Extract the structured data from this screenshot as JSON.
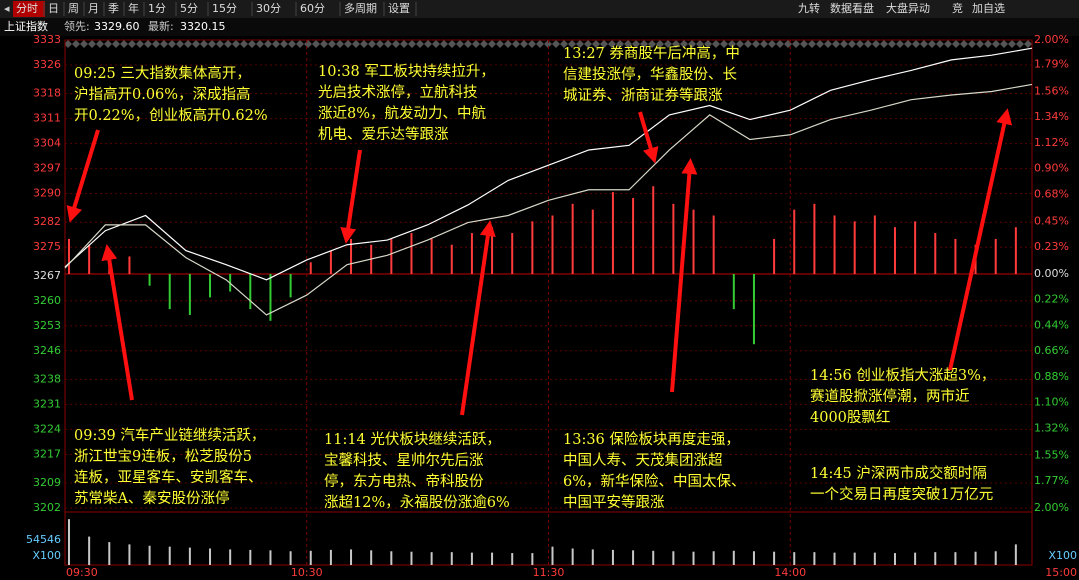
{
  "toolbar": {
    "left": [
      "分时",
      "日",
      "周",
      "月",
      "季",
      "年",
      "1分",
      "5分",
      "15分",
      "30分",
      "60分",
      "多周期",
      "设置"
    ],
    "right": [
      "九转",
      "数据看盘",
      "大盘异动",
      "竞",
      "加自选"
    ]
  },
  "header": {
    "name": "上证指数",
    "lead_label": "领先:",
    "lead_value": "3329.60",
    "last_label": "最新:",
    "last_value": "3320.15"
  },
  "annotations": [
    {
      "lines": [
        "09:25 三大指数集体高开，",
        "沪指高开0.06%，深成指高",
        "开0.22%，创业板高开0.62%"
      ]
    },
    {
      "lines": [
        "10:38 军工板块持续拉升，",
        "光启技术涨停，立航科技",
        "涨近8%，航发动力、中航",
        "机电、爱乐达等跟涨"
      ]
    },
    {
      "lines": [
        "13:27 券商股午后冲高，中",
        "信建投涨停，华鑫股份、长",
        "城证券、浙商证券等跟涨"
      ]
    },
    {
      "lines": [
        "09:39 汽车产业链继续活跃，",
        "浙江世宝9连板，松芝股份5",
        "连板，亚星客车、安凯客车、",
        "苏常柴A、秦安股份涨停"
      ]
    },
    {
      "lines": [
        "11:14 光伏板块继续活跃，",
        "宝馨科技、星帅尔先后涨",
        "停，东方电热、帝科股份",
        "涨超12%，永福股份涨逾6%"
      ]
    },
    {
      "lines": [
        "13:36 保险板块再度走强，",
        "中国人寿、天茂集团涨超",
        "6%，新华保险、中国太保、",
        "中国平安等跟涨"
      ]
    },
    {
      "lines": [
        "14:56 创业板指大涨超3%，",
        "赛道股掀涨停潮，两市近",
        "4000股飘红"
      ]
    },
    {
      "lines": [
        "14:45 沪深两市成交额时隔",
        "一个交易日再度突破1万亿元"
      ]
    }
  ],
  "chart_data": [
    {
      "type": "line",
      "grid": true,
      "x": [
        0,
        10,
        20,
        30,
        40,
        50,
        60,
        70,
        80,
        90,
        100,
        110,
        120,
        130,
        140,
        150,
        160,
        170,
        180,
        190,
        200,
        210,
        220,
        230,
        240
      ],
      "xlim": [
        0,
        240
      ],
      "xticks": [
        {
          "value": 0,
          "label": "09:30"
        },
        {
          "value": 60,
          "label": "10:30"
        },
        {
          "value": 120,
          "label": "11:30"
        },
        {
          "value": 180,
          "label": "14:00"
        },
        {
          "value": 240,
          "label": "15:00"
        }
      ],
      "ylim": [
        3202,
        3333
      ],
      "yticks": [
        3333,
        3326,
        3318,
        3311,
        3304,
        3297,
        3290,
        3282,
        3275,
        3267,
        3260,
        3253,
        3246,
        3238,
        3231,
        3224,
        3217,
        3209,
        3202
      ],
      "y2lim": [
        -2,
        2
      ],
      "y2ticks": [
        {
          "value": 2,
          "label": "2.00%"
        },
        {
          "value": 1.79,
          "label": "1.79%"
        },
        {
          "value": 1.56,
          "label": "1.56%"
        },
        {
          "value": 1.34,
          "label": "1.34%"
        },
        {
          "value": 1.12,
          "label": "1.12%"
        },
        {
          "value": 0.9,
          "label": "0.90%"
        },
        {
          "value": 0.68,
          "label": "0.68%"
        },
        {
          "value": 0.45,
          "label": "0.45%"
        },
        {
          "value": 0.23,
          "label": "0.23%"
        },
        {
          "value": 0,
          "label": "0.00%"
        },
        {
          "value": -0.22,
          "label": "0.22%"
        },
        {
          "value": -0.44,
          "label": "0.44%"
        },
        {
          "value": -0.66,
          "label": "0.66%"
        },
        {
          "value": -0.88,
          "label": "0.88%"
        },
        {
          "value": -1.1,
          "label": "1.10%"
        },
        {
          "value": -1.32,
          "label": "1.32%"
        },
        {
          "value": -1.55,
          "label": "1.55%"
        },
        {
          "value": -1.77,
          "label": "1.77%"
        },
        {
          "value": -2,
          "label": "2.00%"
        }
      ],
      "series": [
        {
          "color": "#ffffff",
          "axis": "y2",
          "values": [
            0.06,
            0.37,
            0.5,
            0.2,
            0.08,
            -0.05,
            0.12,
            0.25,
            0.29,
            0.42,
            0.59,
            0.8,
            0.93,
            1.06,
            1.1,
            1.36,
            1.44,
            1.32,
            1.4,
            1.57,
            1.66,
            1.74,
            1.83,
            1.87,
            1.93
          ]
        },
        {
          "color": "#d8d8c8",
          "axis": "y2",
          "values": [
            0.05,
            0.42,
            0.42,
            0.14,
            -0.05,
            -0.35,
            -0.18,
            0.08,
            0.16,
            0.29,
            0.44,
            0.5,
            0.63,
            0.72,
            0.72,
            1.06,
            1.36,
            1.15,
            1.19,
            1.32,
            1.4,
            1.49,
            1.53,
            1.56,
            1.62
          ]
        }
      ]
    },
    {
      "type": "bar",
      "up_color": "#ff3b3b",
      "down_color": "#33cc33",
      "x": [
        0,
        5,
        10,
        15,
        20,
        25,
        30,
        35,
        40,
        45,
        50,
        55,
        60,
        65,
        70,
        75,
        80,
        85,
        90,
        95,
        100,
        105,
        110,
        115,
        120,
        125,
        130,
        135,
        140,
        145,
        150,
        155,
        160,
        165,
        170,
        175,
        180,
        185,
        190,
        195,
        200,
        205,
        210,
        215,
        220,
        225,
        230,
        235
      ],
      "xlim": [
        0,
        240
      ],
      "ylim": [
        -2,
        2
      ],
      "values": [
        0.3,
        0.25,
        0.2,
        0.15,
        -0.1,
        -0.3,
        -0.35,
        -0.2,
        -0.15,
        -0.3,
        -0.4,
        -0.2,
        0.1,
        0.2,
        0.3,
        0.25,
        0.3,
        0.35,
        0.3,
        0.25,
        0.35,
        0.4,
        0.35,
        0.45,
        0.5,
        0.6,
        0.55,
        0.7,
        0.65,
        0.75,
        0.6,
        0.55,
        0.5,
        -0.3,
        -0.6,
        0.3,
        0.55,
        0.6,
        0.5,
        0.45,
        0.5,
        0.4,
        0.45,
        0.35,
        0.3,
        0.25,
        0.3,
        0.4
      ]
    },
    {
      "type": "bar",
      "color": "#c8c8c8",
      "unit": "X100",
      "x": [
        0,
        5,
        10,
        15,
        20,
        25,
        30,
        35,
        40,
        45,
        50,
        55,
        60,
        65,
        70,
        75,
        80,
        85,
        90,
        95,
        100,
        105,
        110,
        115,
        120,
        125,
        130,
        135,
        140,
        145,
        150,
        155,
        160,
        165,
        170,
        175,
        180,
        185,
        190,
        195,
        200,
        205,
        210,
        215,
        220,
        225,
        230,
        235
      ],
      "xlim": [
        0,
        240
      ],
      "ylim": [
        0,
        109092
      ],
      "yticks": [
        54546
      ],
      "values": [
        100000,
        62000,
        50000,
        45000,
        42000,
        40000,
        38000,
        36000,
        34000,
        33000,
        32000,
        30000,
        31000,
        33000,
        34000,
        32000,
        30000,
        29000,
        28000,
        28000,
        27000,
        27000,
        26000,
        26000,
        40000,
        36000,
        34000,
        33000,
        32000,
        31000,
        30000,
        29000,
        30000,
        31000,
        30000,
        29000,
        28000,
        28000,
        27000,
        27000,
        27000,
        26000,
        27000,
        28000,
        28000,
        29000,
        30000,
        45000
      ]
    }
  ]
}
